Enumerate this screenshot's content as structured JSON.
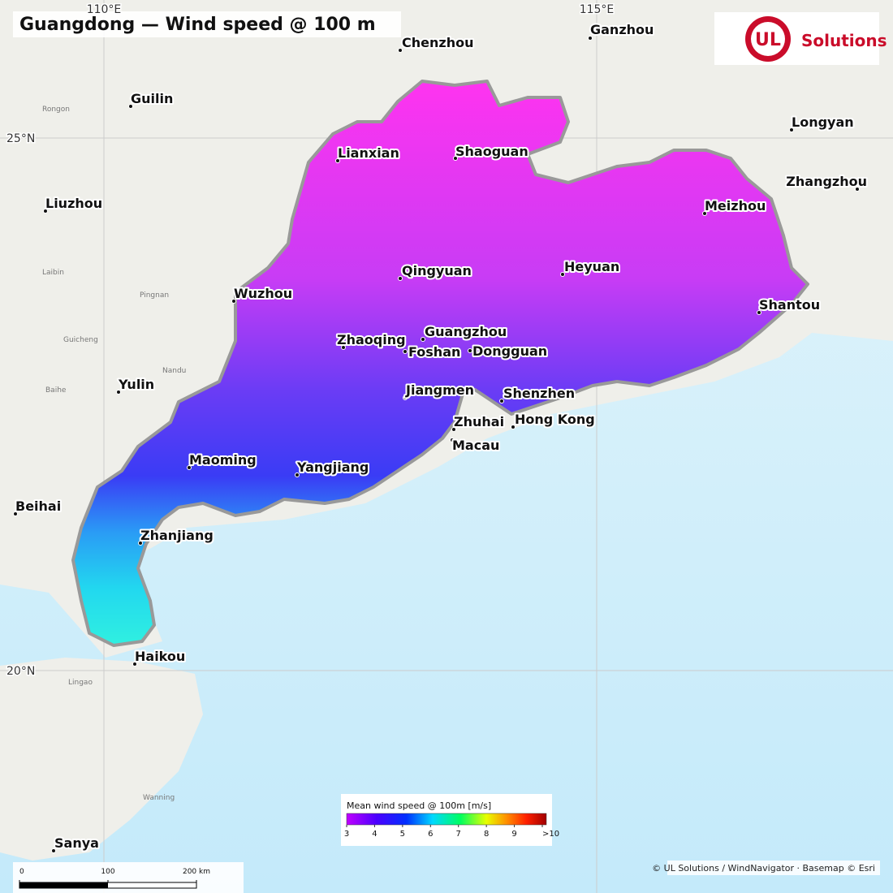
{
  "title": "Guangdong — Wind speed @ 100 m",
  "logo": {
    "mark": "UL",
    "text": "Solutions"
  },
  "graticule": [
    "110°E",
    "115°E",
    "25°N",
    "20°N"
  ],
  "cities": [
    "Chenzhou",
    "Ganzhou",
    "Guilin",
    "Longyan",
    "Lianxian",
    "Shaoguan",
    "Zhangzhou",
    "Liuzhou",
    "Meizhou",
    "Qingyuan",
    "Heyuan",
    "Wuzhou",
    "Shantou",
    "Zhaoqing",
    "Guangzhou",
    "Foshan",
    "Dongguan",
    "Yulin",
    "Jiangmen",
    "Shenzhen",
    "Zhuhai",
    "Hong Kong",
    "Macau",
    "Maoming",
    "Yangjiang",
    "Beihai",
    "Zhanjiang",
    "Haikou",
    "Sanya"
  ],
  "minor_places": [
    "Rongon",
    "Laibin",
    "Pingnan",
    "Guicheng",
    "Nandu",
    "Baihe",
    "Lingao",
    "Wanning"
  ],
  "legend": {
    "title": "Mean wind speed @ 100m  [m/s]",
    "ticks": [
      3,
      4,
      5,
      6,
      7,
      8,
      9,
      {
        "value": 10,
        "label": ">10"
      }
    ]
  },
  "scale_bar": {
    "ticks": [
      0,
      100,
      {
        "value": 200,
        "label": "200 km"
      }
    ]
  },
  "attribution": "© UL Solutions / WindNavigator · Basemap © Esri"
}
